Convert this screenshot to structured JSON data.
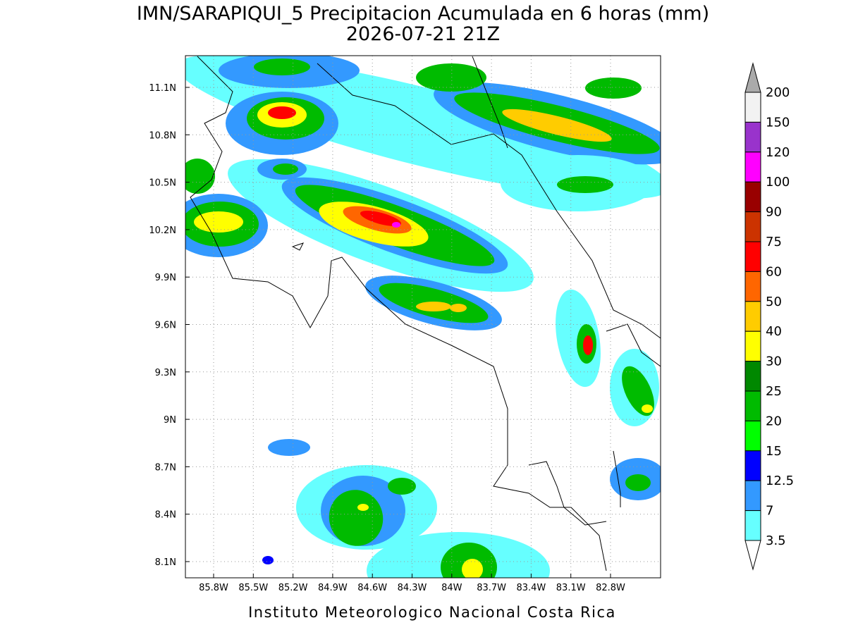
{
  "header": {
    "title": "IMN/SARAPIQUI_5 Precipitacion Acumulada en 6 horas (mm)",
    "subtitle": "2026-07-21 21Z"
  },
  "map": {
    "lon_ticks": [
      "85.8W",
      "85.5W",
      "85.2W",
      "84.9W",
      "84.6W",
      "84.3W",
      "84W",
      "83.7W",
      "83.4W",
      "83.1W",
      "82.8W"
    ],
    "lat_ticks": [
      "11.1N",
      "10.8N",
      "10.5N",
      "10.2N",
      "9.9N",
      "9.6N",
      "9.3N",
      "9N",
      "8.7N",
      "8.4N",
      "8.1N"
    ]
  },
  "colorbar": {
    "labels": [
      "200",
      "150",
      "120",
      "100",
      "90",
      "75",
      "60",
      "50",
      "40",
      "30",
      "25",
      "20",
      "15",
      "12.5",
      "7",
      "3.5"
    ],
    "colors": [
      "#f2f2f2",
      "#9933cc",
      "#ff00ff",
      "#990000",
      "#cc3300",
      "#ff0000",
      "#ff6600",
      "#ffcc00",
      "#ffff00",
      "#008800",
      "#00bb00",
      "#00ff00",
      "#0000ff",
      "#3399ff",
      "#66ffff"
    ]
  },
  "footer": "Instituto Meteorologico Nacional Costa Rica"
}
